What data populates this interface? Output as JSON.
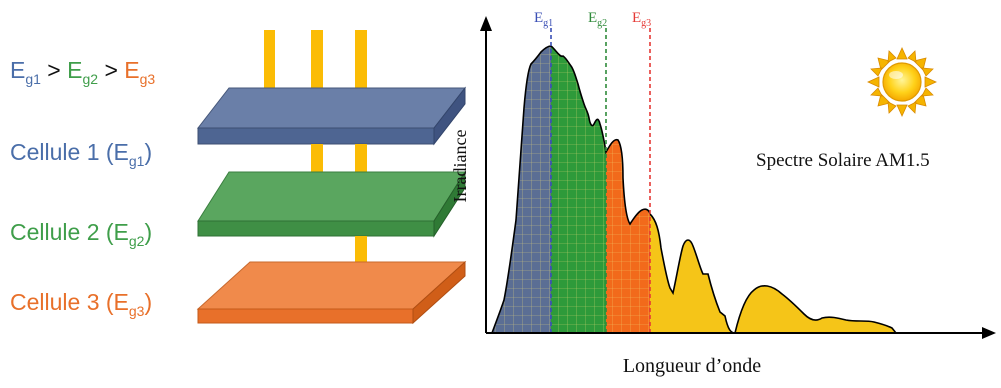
{
  "colors": {
    "cell1": "#6a7fa8",
    "cell2": "#5aa65f",
    "cell3": "#f08a4b",
    "label1": "#4a6ea9",
    "label2": "#3f9e4a",
    "label3": "#e8702a",
    "arrow": "#fbbc05",
    "eg1_line": "#3a4fb5",
    "eg2_line": "#2f8a3a",
    "eg3_line": "#e53935",
    "spectrum_yellow": "#f5c518",
    "spectrum_blue": "#5b6e94",
    "spectrum_green": "#2e9a3a",
    "spectrum_orange": "#f26a1b"
  },
  "left": {
    "inequality": [
      {
        "base": "E",
        "sub": "g1",
        "color_key": "label1"
      },
      {
        "op": " > "
      },
      {
        "base": "E",
        "sub": "g2",
        "color_key": "label2"
      },
      {
        "op": " > "
      },
      {
        "base": "E",
        "sub": "g3",
        "color_key": "label3"
      }
    ],
    "cells": [
      {
        "label": "Cellule 1 (E",
        "sub": "g1",
        "close": ")"
      },
      {
        "label": "Cellule 2 (E",
        "sub": "g2",
        "close": ")"
      },
      {
        "label": "Cellule 3 (E",
        "sub": "g3",
        "close": ")"
      }
    ]
  },
  "right": {
    "ylabel": "Irradiance",
    "xlabel": "Longueur d’onde",
    "spectrum_label": "Spectre Solaire AM1.5",
    "markers": [
      {
        "base": "E",
        "sub": "g1"
      },
      {
        "base": "E",
        "sub": "g2"
      },
      {
        "base": "E",
        "sub": "g3"
      }
    ],
    "sun_icon": "sun-icon"
  }
}
